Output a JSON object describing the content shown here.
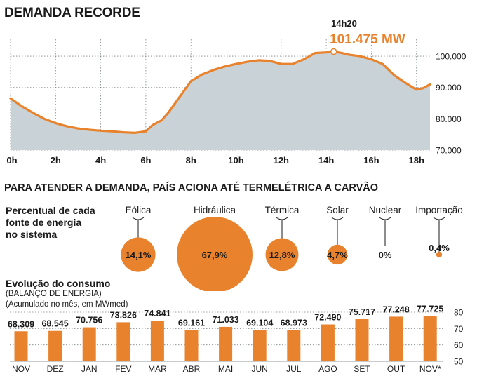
{
  "header": {
    "title": "DEMANDA RECORDE"
  },
  "peak": {
    "time": "14h20",
    "value": "101.475 MW"
  },
  "colors": {
    "accent": "#E8822C",
    "area_fill": "#C9D3D7",
    "grid": "#7A8288",
    "text": "#1a1a1a"
  },
  "chart_data": [
    {
      "type": "area",
      "title": "DEMANDA RECORDE",
      "x_unit": "hour",
      "xlim": [
        0,
        18.6
      ],
      "ylim": [
        70000,
        104500
      ],
      "x_ticks": [
        0,
        2,
        4,
        6,
        8,
        10,
        12,
        14,
        16,
        18
      ],
      "x_tick_labels": [
        "0h",
        "2h",
        "4h",
        "6h",
        "8h",
        "10h",
        "12h",
        "14h",
        "16h",
        "18h"
      ],
      "y_ticks": [
        70000,
        80000,
        90000,
        100000
      ],
      "y_tick_labels": [
        "70.000",
        "80.000",
        "90.000",
        "100.000"
      ],
      "x": [
        0,
        0.5,
        1,
        1.5,
        2,
        2.5,
        3,
        3.5,
        4,
        4.5,
        5,
        5.5,
        6,
        6.3,
        6.7,
        7,
        7.5,
        8,
        8.5,
        9,
        9.5,
        10,
        10.5,
        11,
        11.5,
        12,
        12.5,
        13,
        13.5,
        14,
        14.33,
        14.7,
        15,
        15.5,
        16,
        16.5,
        17,
        17.5,
        18,
        18.3,
        18.6
      ],
      "y": [
        86500,
        84000,
        81900,
        80000,
        78600,
        77600,
        76900,
        76500,
        76200,
        76000,
        75700,
        75500,
        76000,
        78000,
        79500,
        82000,
        87000,
        92000,
        94200,
        95600,
        96700,
        97500,
        98200,
        98700,
        98500,
        97500,
        97500,
        99000,
        101000,
        101200,
        101475,
        101000,
        100500,
        100000,
        99000,
        97500,
        94000,
        91500,
        89300,
        89800,
        91000
      ],
      "annotation": {
        "x": 14.33,
        "y": 101475,
        "label_time": "14h20",
        "label_value": "101.475 MW"
      }
    },
    {
      "type": "bubble",
      "title": "PARA ATENDER A DEMANDA, PAÍS ACIONA ATÉ TERMELÉTRICA A CARVÃO",
      "ylabel": "Percentual de cada fonte de energia no sistema",
      "categories": [
        "Eólica",
        "Hidráulica",
        "Térmica",
        "Solar",
        "Nuclear",
        "Importação"
      ],
      "values": [
        14.1,
        67.9,
        12.8,
        4.7,
        0,
        0.4
      ],
      "value_labels": [
        "14,1%",
        "67,9%",
        "12,8%",
        "4,7%",
        "0%",
        "0,4%"
      ]
    },
    {
      "type": "bar",
      "title": "Evolução do consumo",
      "subtitle": "(BALANÇO DE ENERGIA)",
      "note": "(Acumulado no mês, em MWmed)",
      "categories": [
        "NOV",
        "DEZ",
        "JAN",
        "FEV",
        "MAR",
        "ABR",
        "MAI",
        "JUN",
        "JUL",
        "AGO",
        "SET",
        "OUT",
        "NOV*"
      ],
      "values": [
        68.309,
        68.545,
        70.756,
        73.826,
        74.841,
        69.161,
        71.033,
        69.104,
        68.973,
        72.49,
        75.717,
        77.248,
        77.725
      ],
      "value_labels": [
        "68.309",
        "68.545",
        "70.756",
        "73.826",
        "74.841",
        "69.161",
        "71.033",
        "69.104",
        "68.973",
        "72.490",
        "75.717",
        "77.248",
        "77.725"
      ],
      "ylim": [
        50,
        80
      ],
      "y_ticks": [
        50,
        60,
        70,
        80
      ],
      "y_tick_labels": [
        "50",
        "60",
        "70",
        "80"
      ]
    }
  ],
  "sources": {
    "ylabel_lines": [
      "Percentual de cada",
      "fonte de energia",
      "no sistema"
    ]
  },
  "consumption": {
    "title": "Evolução do consumo",
    "subtitle": "(BALANÇO DE ENERGIA)",
    "note": "(Acumulado no mês, em MWmed)"
  }
}
